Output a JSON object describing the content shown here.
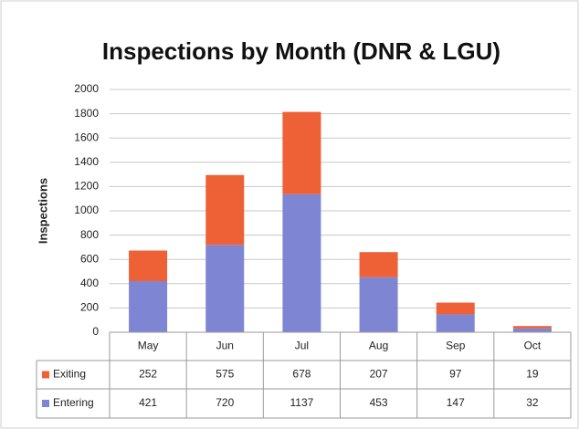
{
  "chart_data": {
    "type": "stacked_bar",
    "title": "Inspections by Month (DNR & LGU)",
    "y_label": "Inspections",
    "categories": [
      "May",
      "Jun",
      "Jul",
      "Aug",
      "Sep",
      "Oct"
    ],
    "series": [
      {
        "name": "Exiting",
        "color": "#ee6035",
        "values": [
          252,
          575,
          678,
          207,
          97,
          19
        ]
      },
      {
        "name": "Entering",
        "color": "#7e85d3",
        "values": [
          421,
          720,
          1137,
          453,
          147,
          32
        ]
      }
    ],
    "ylim": [
      0,
      2000
    ],
    "yticks": [
      0,
      200,
      400,
      600,
      800,
      1000,
      1200,
      1400,
      1600,
      1800,
      2000
    ],
    "grid": true
  }
}
